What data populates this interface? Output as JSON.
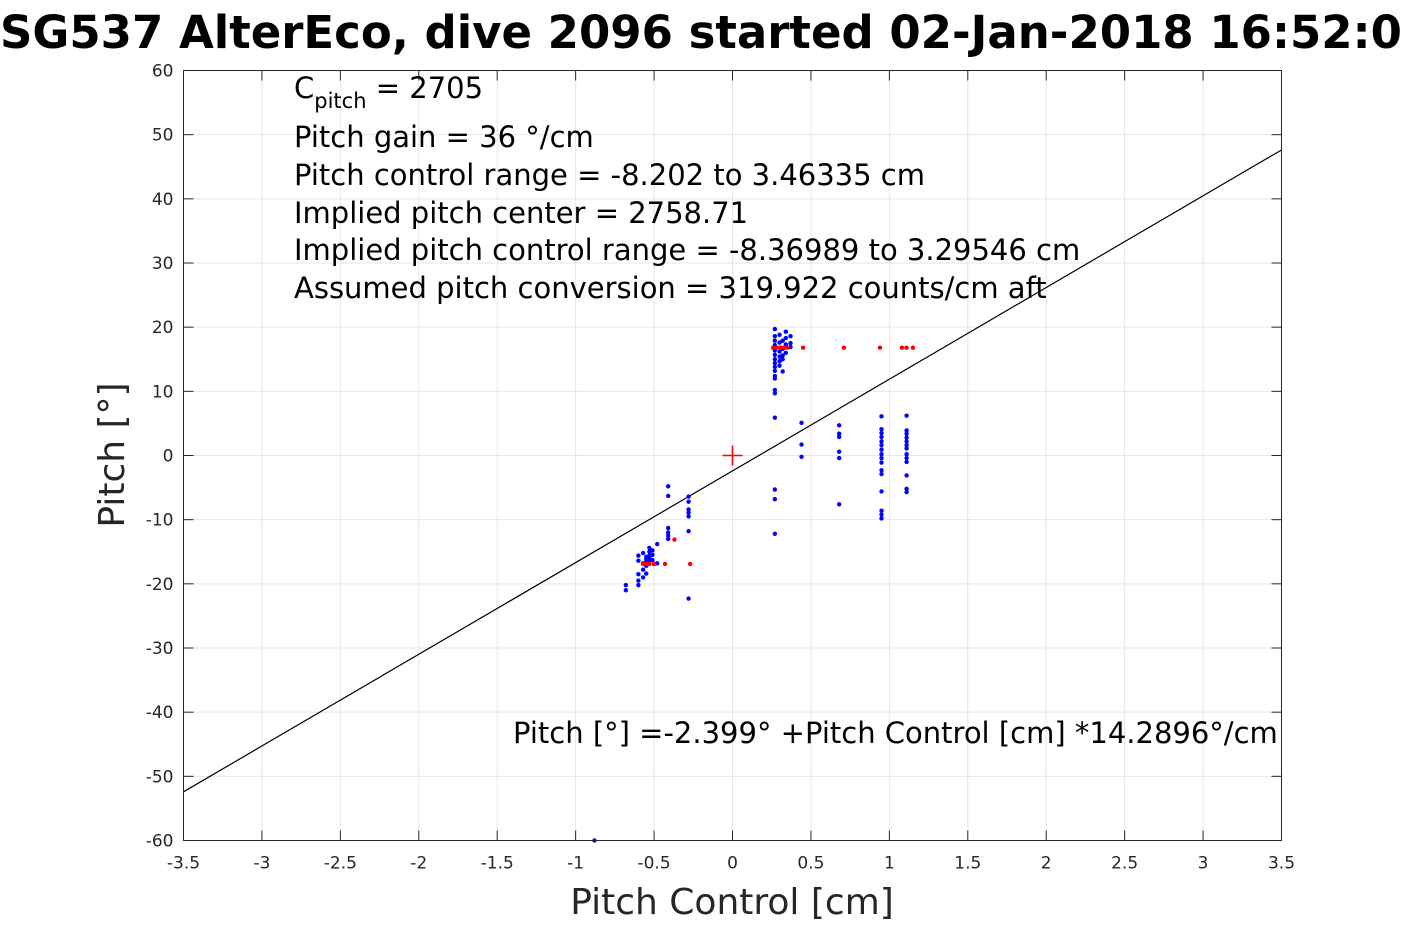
{
  "chart_data": {
    "type": "scatter",
    "title": "SG537 AlterEco, dive 2096 started 02-Jan-2018 16:52:0",
    "xlabel": "Pitch Control [cm]",
    "ylabel": "Pitch [°]",
    "xlim": [
      -3.5,
      3.5
    ],
    "ylim": [
      -60,
      60
    ],
    "grid": true,
    "x_ticks": [
      "-3.5",
      "-3",
      "-2.5",
      "-2",
      "-1.5",
      "-1",
      "-0.5",
      "0",
      "0.5",
      "1",
      "1.5",
      "2",
      "2.5",
      "3",
      "3.5"
    ],
    "y_ticks": [
      "-60",
      "-50",
      "-40",
      "-30",
      "-20",
      "-10",
      "0",
      "10",
      "20",
      "30",
      "40",
      "50",
      "60"
    ],
    "annotations": {
      "c_pitch_main": "C",
      "c_pitch_sub": "pitch",
      "c_pitch_value": " = 2705",
      "pitch_gain": "Pitch gain = 36 °/cm",
      "pitch_control_range": "Pitch control range = -8.202 to 3.46335 cm",
      "implied_center": "Implied pitch center = 2758.71",
      "implied_range": "Implied pitch control range = -8.36989 to 3.29546 cm",
      "assumed_conversion": "Assumed pitch conversion = 319.922 counts/cm aft",
      "fit_equation": "Pitch [°] =-2.399° +Pitch Control [cm] *14.2896°/cm"
    },
    "fit_line": {
      "intercept": -2.399,
      "slope": 14.2896,
      "color": "#000000"
    },
    "center_marker": {
      "x": 0,
      "y": 0,
      "color": "#ff0000"
    },
    "series": [
      {
        "color": "#0000ff",
        "points": [
          [
            -0.88,
            -60.0
          ],
          [
            -0.68,
            -20.2
          ],
          [
            -0.68,
            -21.0
          ],
          [
            -0.6,
            -15.6
          ],
          [
            -0.6,
            -16.4
          ],
          [
            -0.6,
            -18.5
          ],
          [
            -0.6,
            -19.5
          ],
          [
            -0.6,
            -20.2
          ],
          [
            -0.57,
            -15.2
          ],
          [
            -0.57,
            -16.8
          ],
          [
            -0.57,
            -17.8
          ],
          [
            -0.57,
            -19.0
          ],
          [
            -0.55,
            -15.8
          ],
          [
            -0.55,
            -16.2
          ],
          [
            -0.55,
            -16.6
          ],
          [
            -0.55,
            -17.2
          ],
          [
            -0.55,
            -18.4
          ],
          [
            -0.53,
            -14.4
          ],
          [
            -0.53,
            -15.0
          ],
          [
            -0.53,
            -15.6
          ],
          [
            -0.53,
            -16.0
          ],
          [
            -0.53,
            -16.5
          ],
          [
            -0.51,
            -14.8
          ],
          [
            -0.51,
            -15.5
          ],
          [
            -0.51,
            -16.3
          ],
          [
            -0.5,
            -16.9
          ],
          [
            -0.48,
            -13.8
          ],
          [
            -0.48,
            -16.8
          ],
          [
            -0.41,
            -4.8
          ],
          [
            -0.41,
            -6.3
          ],
          [
            -0.41,
            -11.3
          ],
          [
            -0.41,
            -12.0
          ],
          [
            -0.41,
            -12.5
          ],
          [
            -0.41,
            -13.0
          ],
          [
            -0.28,
            -6.4
          ],
          [
            -0.28,
            -7.2
          ],
          [
            -0.28,
            -8.4
          ],
          [
            -0.28,
            -8.9
          ],
          [
            -0.28,
            -9.5
          ],
          [
            -0.28,
            -11.8
          ],
          [
            -0.28,
            -22.3
          ],
          [
            0.27,
            19.7
          ],
          [
            0.27,
            18.6
          ],
          [
            0.27,
            17.9
          ],
          [
            0.27,
            17.2
          ],
          [
            0.27,
            16.4
          ],
          [
            0.27,
            15.7
          ],
          [
            0.27,
            15.0
          ],
          [
            0.27,
            14.4
          ],
          [
            0.27,
            13.8
          ],
          [
            0.27,
            13.2
          ],
          [
            0.27,
            12.4
          ],
          [
            0.27,
            12.0
          ],
          [
            0.27,
            10.2
          ],
          [
            0.27,
            9.7
          ],
          [
            0.27,
            5.9
          ],
          [
            0.27,
            -5.3
          ],
          [
            0.27,
            -6.8
          ],
          [
            0.27,
            -12.2
          ],
          [
            0.3,
            18.8
          ],
          [
            0.3,
            17.6
          ],
          [
            0.3,
            16.2
          ],
          [
            0.3,
            15.4
          ],
          [
            0.3,
            14.7
          ],
          [
            0.3,
            14.0
          ],
          [
            0.32,
            17.9
          ],
          [
            0.32,
            16.6
          ],
          [
            0.32,
            15.6
          ],
          [
            0.32,
            15.0
          ],
          [
            0.32,
            13.1
          ],
          [
            0.34,
            19.3
          ],
          [
            0.34,
            18.3
          ],
          [
            0.34,
            17.3
          ],
          [
            0.34,
            16.0
          ],
          [
            0.37,
            18.6
          ],
          [
            0.37,
            17.5
          ],
          [
            0.37,
            16.9
          ],
          [
            0.44,
            5.1
          ],
          [
            0.44,
            1.7
          ],
          [
            0.44,
            -0.2
          ],
          [
            0.68,
            4.7
          ],
          [
            0.68,
            3.4
          ],
          [
            0.68,
            2.9
          ],
          [
            0.68,
            0.6
          ],
          [
            0.68,
            -0.4
          ],
          [
            0.68,
            -7.6
          ],
          [
            0.95,
            6.1
          ],
          [
            0.95,
            4.1
          ],
          [
            0.95,
            3.5
          ],
          [
            0.95,
            2.9
          ],
          [
            0.95,
            2.2
          ],
          [
            0.95,
            1.6
          ],
          [
            0.95,
            0.9
          ],
          [
            0.95,
            0.2
          ],
          [
            0.95,
            -0.4
          ],
          [
            0.95,
            -1.1
          ],
          [
            0.95,
            -2.3
          ],
          [
            0.95,
            -2.9
          ],
          [
            0.95,
            -5.6
          ],
          [
            0.95,
            -8.6
          ],
          [
            0.95,
            -9.2
          ],
          [
            0.95,
            -9.8
          ],
          [
            1.11,
            6.2
          ],
          [
            1.11,
            3.9
          ],
          [
            1.11,
            3.4
          ],
          [
            1.11,
            2.8
          ],
          [
            1.11,
            2.2
          ],
          [
            1.11,
            1.6
          ],
          [
            1.11,
            1.1
          ],
          [
            1.11,
            0.2
          ],
          [
            1.11,
            -0.4
          ],
          [
            1.11,
            -1.0
          ],
          [
            1.11,
            -3.1
          ],
          [
            1.11,
            -5.2
          ],
          [
            1.11,
            -5.7
          ]
        ]
      },
      {
        "color": "#ff0000",
        "points": [
          [
            -0.57,
            -16.9
          ],
          [
            -0.55,
            -16.9
          ],
          [
            -0.53,
            -16.9
          ],
          [
            -0.5,
            -16.9
          ],
          [
            -0.43,
            -16.9
          ],
          [
            -0.37,
            -13.1
          ],
          [
            -0.27,
            -16.9
          ],
          [
            0.26,
            16.8
          ],
          [
            0.28,
            16.8
          ],
          [
            0.3,
            16.8
          ],
          [
            0.31,
            16.8
          ],
          [
            0.33,
            16.8
          ],
          [
            0.35,
            16.8
          ],
          [
            0.45,
            16.8
          ],
          [
            0.71,
            16.8
          ],
          [
            0.94,
            16.8
          ],
          [
            1.08,
            16.8
          ],
          [
            1.11,
            16.8
          ],
          [
            1.15,
            16.8
          ]
        ]
      }
    ]
  }
}
